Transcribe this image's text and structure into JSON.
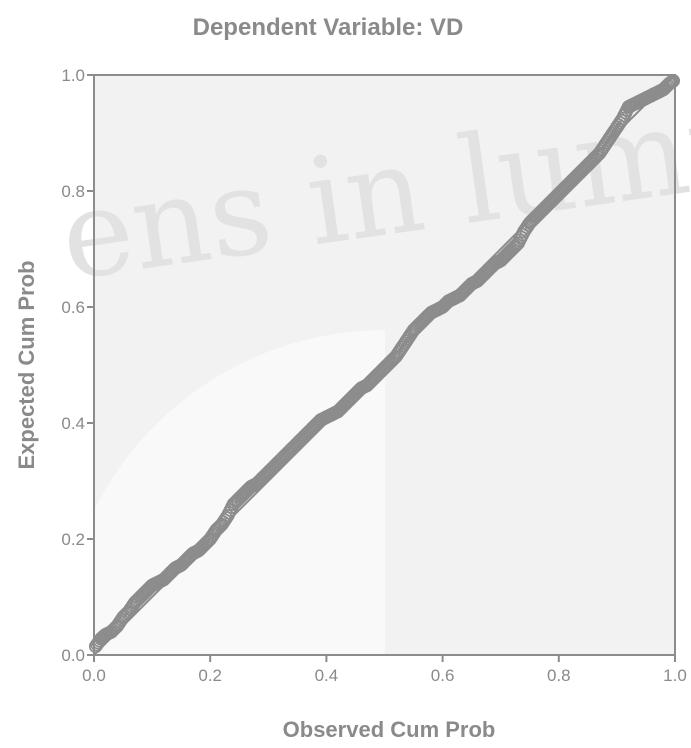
{
  "colors": {
    "plot_background": "#f2f2f2",
    "axis": "#8c8c8c",
    "marker": "#8c8c8c",
    "text": "#8a8a8a",
    "watermark": "#e3e3e3"
  },
  "watermark_text": "ens in lumine",
  "chart_data": {
    "type": "scatter",
    "title": "Dependent Variable: VD",
    "xlabel": "Observed Cum Prob",
    "ylabel": "Expected Cum Prob",
    "xlim": [
      0,
      1
    ],
    "ylim": [
      0,
      1
    ],
    "x_ticks": [
      "0.0",
      "0.2",
      "0.4",
      "0.6",
      "0.8",
      "1.0"
    ],
    "y_ticks": [
      "0.0",
      "0.2",
      "0.4",
      "0.6",
      "0.8",
      "1.0"
    ],
    "grid": false,
    "legend": "none",
    "reference_line": {
      "from": [
        0,
        0
      ],
      "to": [
        1,
        1
      ]
    },
    "points": {
      "x": [
        0.003,
        0.012,
        0.02,
        0.03,
        0.04,
        0.05,
        0.06,
        0.07,
        0.08,
        0.09,
        0.1,
        0.11,
        0.12,
        0.13,
        0.14,
        0.15,
        0.16,
        0.17,
        0.18,
        0.19,
        0.2,
        0.21,
        0.22,
        0.23,
        0.24,
        0.25,
        0.26,
        0.27,
        0.28,
        0.29,
        0.3,
        0.31,
        0.32,
        0.33,
        0.34,
        0.35,
        0.36,
        0.37,
        0.38,
        0.39,
        0.4,
        0.41,
        0.42,
        0.43,
        0.44,
        0.45,
        0.46,
        0.47,
        0.48,
        0.49,
        0.5,
        0.51,
        0.52,
        0.53,
        0.54,
        0.55,
        0.56,
        0.57,
        0.58,
        0.59,
        0.6,
        0.61,
        0.62,
        0.63,
        0.64,
        0.65,
        0.66,
        0.67,
        0.68,
        0.69,
        0.7,
        0.71,
        0.72,
        0.73,
        0.74,
        0.75,
        0.76,
        0.77,
        0.78,
        0.79,
        0.8,
        0.81,
        0.82,
        0.83,
        0.84,
        0.85,
        0.86,
        0.87,
        0.88,
        0.89,
        0.9,
        0.91,
        0.92,
        0.93,
        0.94,
        0.95,
        0.96,
        0.97,
        0.98,
        0.99,
        0.997
      ],
      "y": [
        0.015,
        0.028,
        0.035,
        0.04,
        0.05,
        0.065,
        0.075,
        0.09,
        0.1,
        0.11,
        0.12,
        0.125,
        0.13,
        0.14,
        0.15,
        0.155,
        0.165,
        0.175,
        0.18,
        0.19,
        0.2,
        0.215,
        0.225,
        0.24,
        0.26,
        0.27,
        0.28,
        0.29,
        0.295,
        0.305,
        0.315,
        0.325,
        0.335,
        0.345,
        0.355,
        0.365,
        0.375,
        0.385,
        0.395,
        0.405,
        0.41,
        0.415,
        0.42,
        0.43,
        0.44,
        0.45,
        0.46,
        0.465,
        0.475,
        0.485,
        0.495,
        0.505,
        0.515,
        0.53,
        0.545,
        0.56,
        0.57,
        0.58,
        0.59,
        0.595,
        0.6,
        0.61,
        0.615,
        0.62,
        0.63,
        0.64,
        0.645,
        0.655,
        0.665,
        0.675,
        0.68,
        0.69,
        0.7,
        0.71,
        0.73,
        0.745,
        0.755,
        0.765,
        0.775,
        0.785,
        0.795,
        0.805,
        0.815,
        0.825,
        0.835,
        0.845,
        0.855,
        0.865,
        0.88,
        0.895,
        0.91,
        0.925,
        0.945,
        0.95,
        0.955,
        0.96,
        0.965,
        0.97,
        0.975,
        0.985,
        0.99
      ]
    }
  }
}
